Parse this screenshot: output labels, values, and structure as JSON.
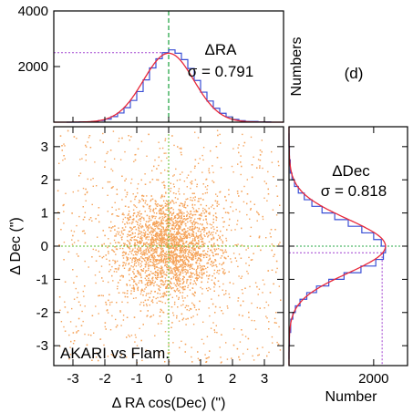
{
  "chart_data": [
    {
      "type": "scatter",
      "panel": "main",
      "title": "",
      "xlabel": "Δ RA cos(Dec) (\")",
      "ylabel": "Δ Dec (\")",
      "xlim": [
        -3.6,
        3.6
      ],
      "ylim": [
        -3.6,
        3.6
      ],
      "x_ticks": [
        -3,
        -2,
        -1,
        0,
        1,
        2,
        3
      ],
      "y_ticks": [
        -3,
        -2,
        -1,
        0,
        1,
        2,
        3
      ],
      "annotation": "AKARI vs Flam.",
      "point_color": "#f5a35a",
      "reference_line_color": "#5cbf2a",
      "distribution": {
        "sigma_ra": 0.791,
        "sigma_dec": 0.818
      }
    },
    {
      "type": "line",
      "panel": "top-histogram",
      "ylabel": "Numbers",
      "ylim": [
        0,
        4000
      ],
      "y_ticks": [
        2000,
        4000
      ],
      "label_var": "ΔRA",
      "label_sigma": "σ = 0.791",
      "peak_value": 2500,
      "series": [
        {
          "kind": "histogram",
          "color": "#3a4fd6",
          "x": [
            -3.2,
            -2.8,
            -2.4,
            -2.2,
            -2.0,
            -1.8,
            -1.6,
            -1.4,
            -1.2,
            -1.0,
            -0.8,
            -0.6,
            -0.4,
            -0.2,
            0.0,
            0.2,
            0.4,
            0.6,
            0.8,
            1.0,
            1.2,
            1.4,
            1.6,
            1.8,
            2.0,
            2.2,
            2.4,
            2.8,
            3.2
          ],
          "y": [
            0,
            10,
            30,
            60,
            110,
            200,
            330,
            520,
            780,
            1100,
            1520,
            1950,
            2280,
            2500,
            2600,
            2480,
            2250,
            1930,
            1500,
            1080,
            760,
            500,
            320,
            190,
            100,
            55,
            25,
            8,
            0
          ]
        },
        {
          "kind": "gaussian",
          "color": "#e8283a",
          "amplitude": 2480,
          "mu": 0.0,
          "sigma": 0.791
        }
      ]
    },
    {
      "type": "line",
      "panel": "right-histogram",
      "xlabel": "Number",
      "x_ticks": [
        2000
      ],
      "label_var": "ΔDec",
      "label_sigma": "σ = 0.818",
      "peak_value": 2200,
      "panel_label": "(d)",
      "series": [
        {
          "kind": "histogram",
          "color": "#3a4fd6",
          "y": [
            -3.4,
            -3.0,
            -2.6,
            -2.2,
            -2.0,
            -1.8,
            -1.6,
            -1.4,
            -1.2,
            -1.0,
            -0.8,
            -0.6,
            -0.4,
            -0.2,
            0.0,
            0.2,
            0.4,
            0.6,
            0.8,
            1.0,
            1.2,
            1.4,
            1.6,
            1.8,
            2.0,
            2.2,
            2.6,
            3.0,
            3.4
          ],
          "x": [
            0,
            10,
            40,
            90,
            150,
            260,
            420,
            650,
            940,
            1300,
            1700,
            2050,
            2230,
            2280,
            2180,
            2000,
            1720,
            1400,
            1080,
            780,
            540,
            360,
            220,
            130,
            70,
            30,
            10,
            0,
            0
          ]
        },
        {
          "kind": "gaussian",
          "color": "#e8283a",
          "amplitude": 2280,
          "mu": 0.0,
          "sigma": 0.818
        }
      ]
    }
  ]
}
